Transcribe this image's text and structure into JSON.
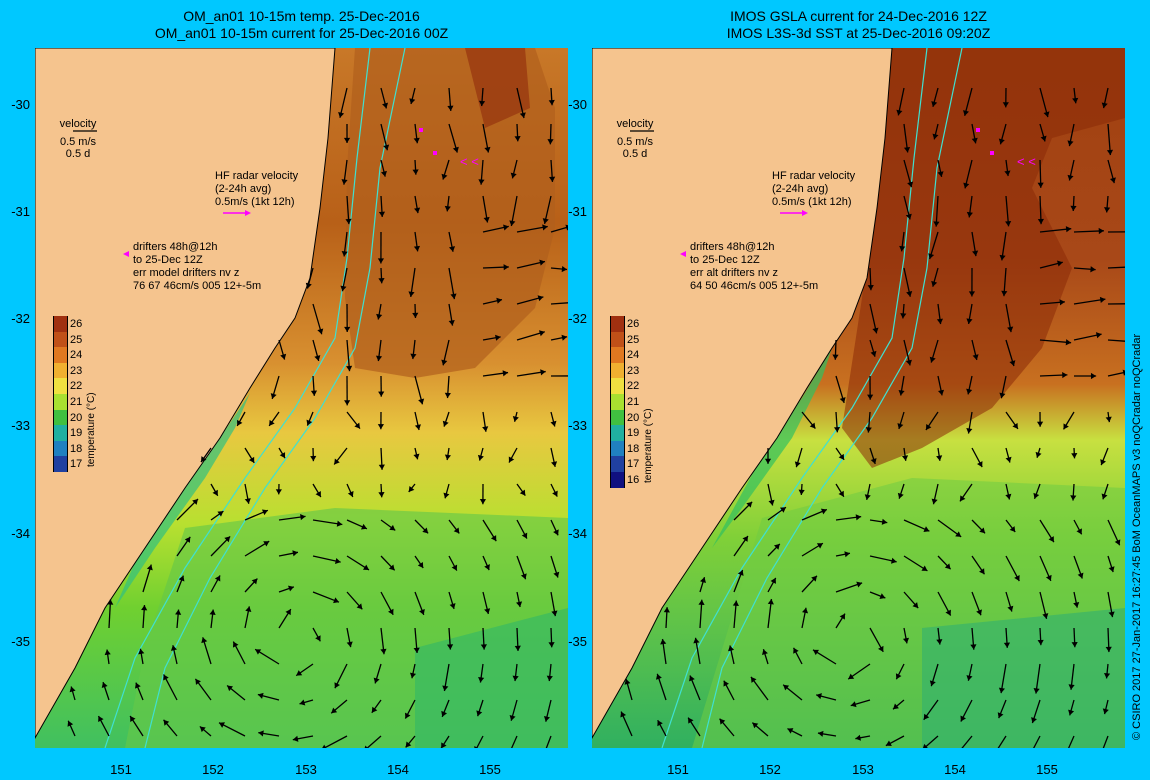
{
  "left": {
    "title1": "OM_an01 10-15m temp. 25-Dec-2016",
    "title2": "OM_an01 10-15m current for 25-Dec-2016 00Z",
    "drifter_line": "err model drifters nv z",
    "drifter_stats": "76 67 46cm/s 005 12+-5m",
    "cbar_ticks": [
      "26",
      "25",
      "24",
      "23",
      "22",
      "21",
      "20",
      "19",
      "18",
      "17"
    ]
  },
  "right": {
    "title1": "IMOS GSLA current for 24-Dec-2016 12Z",
    "title2": "IMOS L3S-3d SST at 25-Dec-2016 09:20Z",
    "drifter_line": "err alt drifters nv z",
    "drifter_stats": "64 50 46cm/s 005 12+-5m",
    "cbar_ticks": [
      "26",
      "25",
      "24",
      "23",
      "22",
      "21",
      "20",
      "19",
      "18",
      "17",
      "16"
    ]
  },
  "velocity_legend": {
    "label": "velocity",
    "speed": "0.5 m/s",
    "time": "0.5 d"
  },
  "hf_radar": {
    "line1": "HF radar velocity",
    "line2": "(2-24h avg)",
    "line3": "0.5m/s (1kt 12h)"
  },
  "drifters": {
    "line1": "drifters 48h@12h",
    "line2": "to 25-Dec 12Z"
  },
  "colorbar_title": "temperature (°C)",
  "y_ticks": [
    "-30",
    "-31",
    "-32",
    "-33",
    "-34",
    "-35"
  ],
  "x_ticks": [
    "151",
    "152",
    "153",
    "154",
    "155"
  ],
  "credit": "© CSIRO 2017  27-Jan-2017 16:27:45 BoM OceanMAPS v3 noQCradar noQCradar",
  "colors": {
    "background": "#00c8ff",
    "land": "#f5c48e",
    "arrow_magenta": "#ff00ff",
    "isobath": "#40e0d0"
  }
}
